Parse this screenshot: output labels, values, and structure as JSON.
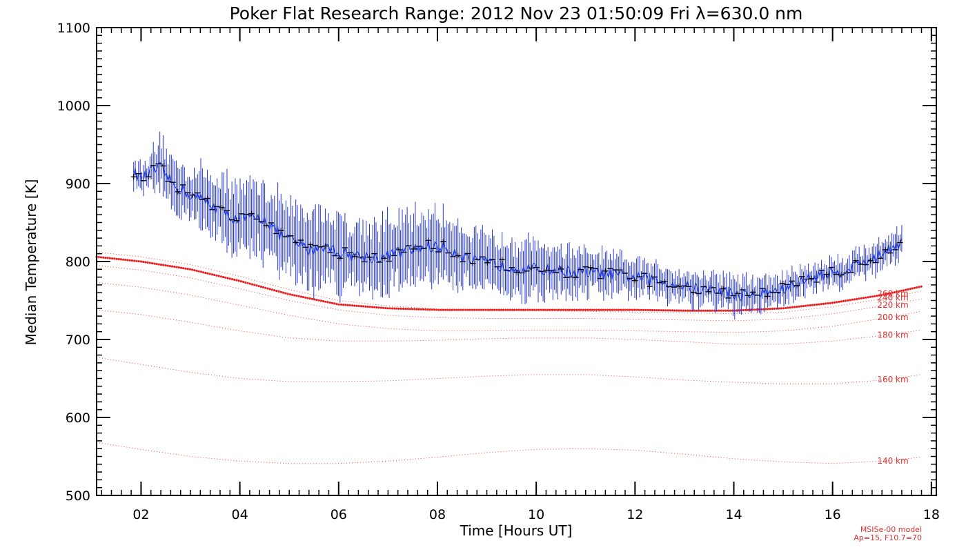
{
  "chart_data": {
    "type": "line",
    "title": "Poker Flat Research Range: 2012 Nov 23 01:50:09 Fri λ=630.0 nm",
    "xlabel": "Time [Hours UT]",
    "ylabel": "Median Temperature [K]",
    "xlim": [
      1.1,
      18.1
    ],
    "ylim": [
      500,
      1100
    ],
    "x_ticks": [
      2,
      4,
      6,
      8,
      10,
      12,
      14,
      16,
      18
    ],
    "x_tick_labels": [
      "02",
      "04",
      "06",
      "08",
      "10",
      "12",
      "14",
      "16",
      "18"
    ],
    "y_ticks": [
      500,
      600,
      700,
      800,
      900,
      1000,
      1100
    ],
    "y_tick_labels": [
      "500",
      "600",
      "700",
      "800",
      "900",
      "1000",
      "1100"
    ],
    "grid": false,
    "series": [
      {
        "kind": "measured",
        "color": "#1f3fd6",
        "x": [
          1.85,
          2.0,
          2.2,
          2.4,
          2.6,
          2.8,
          3.0,
          3.3,
          3.6,
          3.9,
          4.2,
          4.5,
          4.8,
          5.1,
          5.4,
          5.7,
          6.0,
          6.3,
          6.6,
          6.9,
          7.2,
          7.5,
          7.8,
          8.1,
          8.4,
          8.7,
          9.0,
          9.3,
          9.6,
          9.9,
          10.2,
          10.5,
          10.8,
          11.1,
          11.4,
          11.7,
          12.0,
          12.3,
          12.6,
          12.9,
          13.2,
          13.5,
          13.8,
          14.0,
          14.2,
          14.5,
          14.8,
          15.1,
          15.4,
          15.7,
          16.0,
          16.3,
          16.6,
          16.9,
          17.2,
          17.4
        ],
        "y": [
          915,
          905,
          915,
          920,
          902,
          893,
          885,
          878,
          866,
          855,
          855,
          855,
          835,
          825,
          815,
          820,
          812,
          808,
          806,
          805,
          812,
          815,
          820,
          818,
          812,
          800,
          798,
          795,
          793,
          790,
          790,
          788,
          786,
          786,
          784,
          782,
          780,
          776,
          774,
          770,
          765,
          764,
          762,
          758,
          757,
          758,
          762,
          766,
          775,
          782,
          785,
          790,
          800,
          805,
          820,
          825
        ],
        "error": [
          15,
          15,
          20,
          30,
          30,
          30,
          30,
          35,
          38,
          40,
          40,
          42,
          42,
          42,
          42,
          42,
          42,
          40,
          40,
          40,
          40,
          40,
          38,
          38,
          35,
          35,
          32,
          32,
          30,
          30,
          28,
          26,
          25,
          22,
          22,
          20,
          20,
          18,
          18,
          18,
          18,
          18,
          20,
          20,
          18,
          18,
          16,
          16,
          15,
          15,
          15,
          15,
          15,
          15,
          15,
          15
        ]
      },
      {
        "name": "260 km",
        "kind": "model",
        "highlighted": true,
        "x": [
          1.1,
          2,
          3,
          4,
          5,
          6,
          7,
          8,
          9,
          10,
          11,
          12,
          13,
          14,
          15,
          16,
          17,
          17.8
        ],
        "y": [
          806,
          800,
          790,
          775,
          758,
          745,
          740,
          738,
          738,
          738,
          738,
          738,
          737,
          737,
          740,
          747,
          757,
          768
        ]
      },
      {
        "name": "240 km",
        "kind": "model",
        "x": [
          1.1,
          2,
          3,
          4,
          5,
          6,
          7,
          8,
          9,
          10,
          11,
          12,
          13,
          14,
          15,
          16,
          17,
          17.8
        ],
        "y": [
          812,
          806,
          796,
          781,
          764,
          750,
          743,
          739,
          737,
          737,
          736,
          735,
          734,
          733,
          735,
          742,
          752,
          762
        ]
      },
      {
        "name": "220 km",
        "kind": "model",
        "x": [
          1.1,
          2,
          3,
          4,
          5,
          6,
          7,
          8,
          9,
          10,
          11,
          12,
          13,
          14,
          15,
          16,
          17,
          17.8
        ],
        "y": [
          795,
          789,
          779,
          765,
          750,
          738,
          731,
          728,
          727,
          727,
          727,
          726,
          725,
          724,
          726,
          733,
          743,
          752
        ]
      },
      {
        "name": "200 km",
        "kind": "model",
        "x": [
          1.1,
          2,
          3,
          4,
          5,
          6,
          7,
          8,
          9,
          10,
          11,
          12,
          13,
          14,
          15,
          16,
          17,
          17.8
        ],
        "y": [
          773,
          767,
          757,
          744,
          731,
          720,
          714,
          711,
          711,
          712,
          712,
          711,
          710,
          709,
          711,
          717,
          727,
          736
        ]
      },
      {
        "name": "180 km",
        "kind": "model",
        "x": [
          1.1,
          2,
          3,
          4,
          5,
          6,
          7,
          8,
          9,
          10,
          11,
          12,
          13,
          14,
          15,
          16,
          17,
          17.8
        ],
        "y": [
          738,
          732,
          722,
          711,
          702,
          698,
          698,
          699,
          701,
          702,
          702,
          700,
          697,
          694,
          694,
          698,
          705,
          712
        ]
      },
      {
        "name": "160 km",
        "kind": "model",
        "x": [
          1.1,
          2,
          3,
          4,
          5,
          6,
          7,
          8,
          9,
          10,
          11,
          12,
          13,
          14,
          15,
          16,
          17,
          17.8
        ],
        "y": [
          677,
          668,
          658,
          650,
          646,
          646,
          647,
          650,
          653,
          655,
          655,
          652,
          648,
          645,
          643,
          643,
          648,
          655
        ]
      },
      {
        "name": "140 km",
        "kind": "model",
        "x": [
          1.1,
          2,
          3,
          4,
          5,
          6,
          7,
          8,
          9,
          10,
          11,
          12,
          13,
          14,
          15,
          16,
          17,
          17.8
        ],
        "y": [
          568,
          559,
          550,
          544,
          541,
          541,
          544,
          549,
          555,
          559,
          560,
          558,
          553,
          547,
          543,
          541,
          544,
          549
        ]
      }
    ],
    "footnote": [
      "MSISe-00 model",
      "Ap=15, F10.7=70"
    ]
  }
}
